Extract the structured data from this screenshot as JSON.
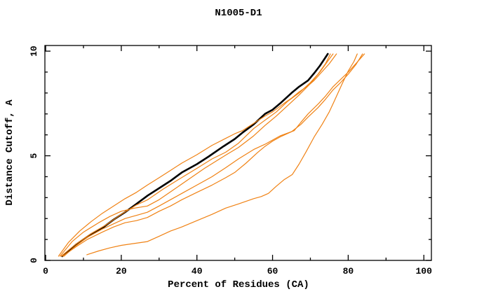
{
  "window": {
    "background": "#ffffff"
  },
  "chart_data": {
    "type": "line",
    "title": "N1005-D1",
    "xlabel": "Percent of Residues (CA)",
    "ylabel": "Distance Cutoff, A",
    "xlim": [
      -0.2,
      102
    ],
    "ylim": [
      0,
      10.27
    ],
    "x_ticks_major": [
      0,
      20,
      40,
      60,
      80,
      100
    ],
    "x_ticks_minor": [
      10,
      30,
      50,
      70,
      90
    ],
    "y_ticks_major": [
      0,
      5,
      10
    ],
    "y_ticks_minor": [
      1,
      2,
      3,
      4,
      6,
      7,
      8,
      9
    ],
    "grid": false,
    "legend": "none",
    "colors": {
      "target": "#000000",
      "model": "#f08214"
    },
    "series": [
      {
        "name": "target-curve",
        "color": "#000000",
        "width": 2.6,
        "points": [
          [
            4.4,
            0.2
          ],
          [
            8,
            0.75
          ],
          [
            12,
            1.25
          ],
          [
            15,
            1.55
          ],
          [
            18,
            1.95
          ],
          [
            21,
            2.3
          ],
          [
            24,
            2.7
          ],
          [
            27,
            3.1
          ],
          [
            30,
            3.45
          ],
          [
            33,
            3.8
          ],
          [
            36,
            4.2
          ],
          [
            40,
            4.6
          ],
          [
            43,
            4.95
          ],
          [
            47,
            5.45
          ],
          [
            50,
            5.8
          ],
          [
            52,
            6.1
          ],
          [
            55,
            6.5
          ],
          [
            58,
            7.0
          ],
          [
            60,
            7.2
          ],
          [
            62,
            7.5
          ],
          [
            65,
            8.0
          ],
          [
            67,
            8.3
          ],
          [
            69.4,
            8.6
          ],
          [
            71,
            8.95
          ],
          [
            72.5,
            9.3
          ],
          [
            74,
            9.7
          ],
          [
            74.6,
            9.87
          ]
        ]
      },
      {
        "name": "model-curve-1",
        "color": "#f08214",
        "width": 1.2,
        "points": [
          [
            4.1,
            0.2
          ],
          [
            8,
            0.78
          ],
          [
            12,
            1.28
          ],
          [
            16,
            1.7
          ],
          [
            20,
            2.2
          ],
          [
            24,
            2.65
          ],
          [
            27,
            2.9
          ],
          [
            31,
            3.4
          ],
          [
            35,
            3.85
          ],
          [
            40,
            4.4
          ],
          [
            44,
            4.85
          ],
          [
            47.6,
            5.17
          ],
          [
            51,
            5.6
          ],
          [
            55,
            6.3
          ],
          [
            58,
            6.7
          ],
          [
            61,
            7.1
          ],
          [
            64,
            7.6
          ],
          [
            67,
            8.0
          ],
          [
            70,
            8.5
          ],
          [
            72,
            8.9
          ],
          [
            74,
            9.4
          ],
          [
            75.3,
            9.87
          ]
        ]
      },
      {
        "name": "model-curve-2",
        "color": "#f08214",
        "width": 1.2,
        "points": [
          [
            3.8,
            0.2
          ],
          [
            7,
            0.9
          ],
          [
            10,
            1.35
          ],
          [
            14,
            1.8
          ],
          [
            17,
            2.1
          ],
          [
            20,
            2.35
          ],
          [
            23.5,
            2.5
          ],
          [
            26.9,
            2.6
          ],
          [
            30,
            2.9
          ],
          [
            34,
            3.4
          ],
          [
            38,
            3.9
          ],
          [
            42,
            4.4
          ],
          [
            47.6,
            5.03
          ],
          [
            51,
            5.4
          ],
          [
            55,
            5.95
          ],
          [
            58,
            6.45
          ],
          [
            61,
            6.9
          ],
          [
            64,
            7.4
          ],
          [
            67,
            7.9
          ],
          [
            70,
            8.45
          ],
          [
            72.5,
            9.0
          ],
          [
            74.5,
            9.5
          ],
          [
            76,
            9.87
          ]
        ]
      },
      {
        "name": "model-curve-3",
        "color": "#f08214",
        "width": 1.2,
        "points": [
          [
            3.4,
            0.2
          ],
          [
            6,
            0.85
          ],
          [
            9,
            1.4
          ],
          [
            12,
            1.85
          ],
          [
            15,
            2.25
          ],
          [
            18,
            2.6
          ],
          [
            21,
            2.95
          ],
          [
            24,
            3.25
          ],
          [
            26.9,
            3.6
          ],
          [
            30,
            3.95
          ],
          [
            33,
            4.3
          ],
          [
            36,
            4.65
          ],
          [
            40,
            5.05
          ],
          [
            44,
            5.5
          ],
          [
            47.6,
            5.83
          ],
          [
            50,
            6.05
          ],
          [
            52,
            6.2
          ],
          [
            55,
            6.55
          ],
          [
            58,
            6.9
          ],
          [
            60,
            7.1
          ],
          [
            63,
            7.5
          ],
          [
            65,
            7.75
          ],
          [
            67,
            8.05
          ],
          [
            69.4,
            8.35
          ],
          [
            71,
            8.6
          ],
          [
            73,
            9.0
          ],
          [
            75,
            9.4
          ],
          [
            76.9,
            9.87
          ]
        ]
      },
      {
        "name": "model-curve-4",
        "color": "#f08214",
        "width": 1.2,
        "points": [
          [
            4.8,
            0.2
          ],
          [
            8,
            0.7
          ],
          [
            11,
            1.1
          ],
          [
            15,
            1.5
          ],
          [
            18,
            1.75
          ],
          [
            21,
            2.0
          ],
          [
            24,
            2.15
          ],
          [
            26.9,
            2.3
          ],
          [
            30,
            2.6
          ],
          [
            33,
            2.9
          ],
          [
            36,
            3.2
          ],
          [
            40,
            3.6
          ],
          [
            44,
            4.0
          ],
          [
            47.6,
            4.43
          ],
          [
            51,
            4.85
          ],
          [
            55,
            5.3
          ],
          [
            58,
            5.55
          ],
          [
            62,
            5.95
          ],
          [
            65.7,
            6.2
          ],
          [
            67.5,
            6.6
          ],
          [
            69.4,
            7.0
          ],
          [
            72.2,
            7.5
          ],
          [
            74,
            7.85
          ],
          [
            76,
            8.3
          ],
          [
            78,
            8.65
          ],
          [
            80,
            9.0
          ],
          [
            82,
            9.4
          ],
          [
            84.3,
            9.87
          ]
        ]
      },
      {
        "name": "model-curve-5",
        "color": "#f08214",
        "width": 1.2,
        "points": [
          [
            4.5,
            0.2
          ],
          [
            8,
            0.65
          ],
          [
            11,
            1.0
          ],
          [
            15,
            1.35
          ],
          [
            18,
            1.6
          ],
          [
            21,
            1.8
          ],
          [
            24,
            1.9
          ],
          [
            26.9,
            2.05
          ],
          [
            30,
            2.35
          ],
          [
            33,
            2.6
          ],
          [
            36,
            2.9
          ],
          [
            40,
            3.25
          ],
          [
            44,
            3.6
          ],
          [
            47.6,
            3.95
          ],
          [
            50,
            4.2
          ],
          [
            53,
            4.65
          ],
          [
            56,
            5.15
          ],
          [
            58,
            5.45
          ],
          [
            60,
            5.7
          ],
          [
            62,
            5.9
          ],
          [
            65,
            6.15
          ],
          [
            67.5,
            6.5
          ],
          [
            69.4,
            6.85
          ],
          [
            72,
            7.3
          ],
          [
            74,
            7.7
          ],
          [
            76,
            8.15
          ],
          [
            78,
            8.5
          ],
          [
            80,
            8.9
          ],
          [
            82,
            9.35
          ],
          [
            83.8,
            9.87
          ]
        ]
      },
      {
        "name": "model-curve-6",
        "color": "#f08214",
        "width": 1.2,
        "points": [
          [
            10.9,
            0.27
          ],
          [
            14,
            0.45
          ],
          [
            17,
            0.6
          ],
          [
            20,
            0.72
          ],
          [
            23,
            0.8
          ],
          [
            26.9,
            0.9
          ],
          [
            30,
            1.15
          ],
          [
            33,
            1.4
          ],
          [
            36,
            1.6
          ],
          [
            40,
            1.9
          ],
          [
            44,
            2.2
          ],
          [
            47.6,
            2.5
          ],
          [
            51,
            2.7
          ],
          [
            55,
            2.95
          ],
          [
            57,
            3.05
          ],
          [
            58.9,
            3.2
          ],
          [
            61,
            3.55
          ],
          [
            63,
            3.85
          ],
          [
            65.2,
            4.1
          ],
          [
            67,
            4.6
          ],
          [
            68.9,
            5.2
          ],
          [
            71,
            5.9
          ],
          [
            73.1,
            6.5
          ],
          [
            75,
            7.1
          ],
          [
            76.3,
            7.6
          ],
          [
            78.3,
            8.4
          ],
          [
            80,
            9.05
          ],
          [
            81.5,
            9.5
          ],
          [
            82.4,
            9.87
          ]
        ]
      }
    ]
  }
}
